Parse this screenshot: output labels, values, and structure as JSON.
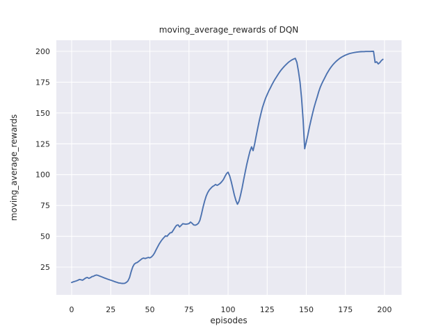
{
  "chart_data": {
    "type": "line",
    "title": "moving_average_rewards of DQN",
    "xlabel": "episodes",
    "ylabel": "moving_average_rewards",
    "x_ticks": [
      0,
      25,
      50,
      75,
      100,
      125,
      150,
      175,
      200
    ],
    "y_ticks": [
      25,
      50,
      75,
      100,
      125,
      150,
      175,
      200
    ],
    "xlim": [
      -9.8,
      210.9
    ],
    "ylim": [
      2.5,
      209.0
    ],
    "grid": true,
    "legend_position": "none",
    "colors": {
      "figure_bg": "#ffffff",
      "axes_bg": "#eaeaf2",
      "grid": "#ffffff",
      "line": "#4c72b0",
      "text": "#262626"
    },
    "series": [
      {
        "name": "moving_average_rewards",
        "x_start": 0,
        "x_step": 1,
        "values": [
          12.5,
          13.0,
          13.4,
          13.8,
          14.3,
          15.0,
          14.7,
          14.4,
          15.3,
          16.2,
          16.6,
          15.9,
          16.4,
          17.3,
          17.6,
          18.3,
          18.6,
          18.2,
          17.7,
          17.2,
          16.7,
          16.2,
          15.7,
          15.2,
          14.8,
          14.4,
          14.0,
          13.5,
          13.0,
          12.6,
          12.2,
          12.0,
          11.8,
          11.7,
          11.9,
          12.6,
          13.8,
          16.5,
          21.0,
          25.0,
          27.3,
          28.3,
          28.8,
          29.8,
          30.8,
          31.8,
          32.3,
          31.9,
          32.4,
          32.8,
          32.5,
          33.2,
          34.5,
          36.5,
          39.0,
          41.5,
          43.8,
          45.8,
          47.5,
          49.0,
          50.3,
          50.0,
          51.5,
          52.8,
          53.0,
          55.0,
          57.0,
          58.8,
          59.3,
          57.6,
          58.8,
          60.2,
          60.0,
          59.8,
          60.0,
          60.3,
          61.5,
          60.5,
          59.2,
          59.0,
          59.5,
          60.5,
          63.0,
          68.0,
          73.5,
          78.5,
          82.5,
          85.5,
          87.5,
          89.0,
          90.3,
          91.0,
          92.0,
          91.3,
          92.0,
          93.0,
          94.3,
          96.0,
          98.5,
          100.8,
          102.0,
          99.0,
          94.5,
          89.0,
          83.5,
          79.0,
          76.0,
          78.5,
          83.5,
          89.5,
          96.0,
          102.5,
          108.5,
          114.0,
          119.0,
          122.5,
          119.5,
          125.0,
          131.5,
          138.0,
          144.0,
          149.5,
          154.5,
          158.5,
          162.0,
          165.0,
          167.8,
          170.3,
          172.8,
          175.2,
          177.4,
          179.4,
          181.4,
          183.3,
          185.0,
          186.5,
          187.9,
          189.2,
          190.4,
          191.5,
          192.4,
          193.2,
          193.8,
          194.3,
          191.0,
          184.0,
          175.0,
          162.0,
          144.0,
          121.0,
          126.5,
          132.0,
          138.5,
          144.0,
          149.5,
          154.5,
          159.0,
          163.0,
          167.5,
          171.0,
          174.0,
          176.5,
          179.0,
          181.5,
          183.7,
          185.7,
          187.5,
          189.1,
          190.5,
          191.8,
          192.9,
          193.9,
          194.8,
          195.6,
          196.3,
          196.9,
          197.4,
          197.9,
          198.3,
          198.6,
          198.9,
          199.1,
          199.3,
          199.5,
          199.6,
          199.7,
          199.8,
          199.8,
          199.9,
          199.9,
          199.9,
          199.9,
          200.0,
          200.0,
          191.0,
          191.5,
          189.8,
          190.8,
          192.5,
          193.5
        ]
      }
    ]
  }
}
